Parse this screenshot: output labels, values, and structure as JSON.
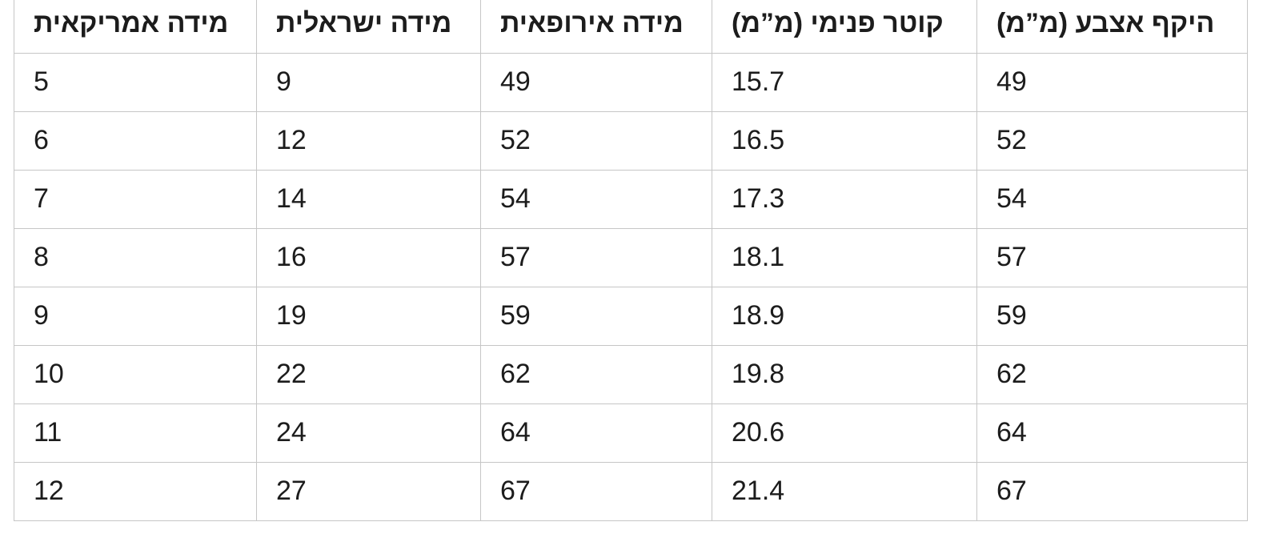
{
  "table": {
    "header": [
      "מידה אמריקאית",
      "מידה ישראלית",
      "מידה אירופאית",
      "קוטר פנימי (מ”מ)",
      "היקף אצבע (מ”מ)"
    ],
    "rows": [
      [
        5,
        9,
        49,
        15.7,
        49
      ],
      [
        6,
        12,
        52,
        16.5,
        52
      ],
      [
        7,
        14,
        54,
        17.3,
        54
      ],
      [
        8,
        16,
        57,
        18.1,
        57
      ],
      [
        9,
        19,
        59,
        18.9,
        59
      ],
      [
        10,
        22,
        62,
        19.8,
        62
      ],
      [
        11,
        24,
        64,
        20.6,
        64
      ],
      [
        12,
        27,
        67,
        21.4,
        67
      ]
    ]
  }
}
